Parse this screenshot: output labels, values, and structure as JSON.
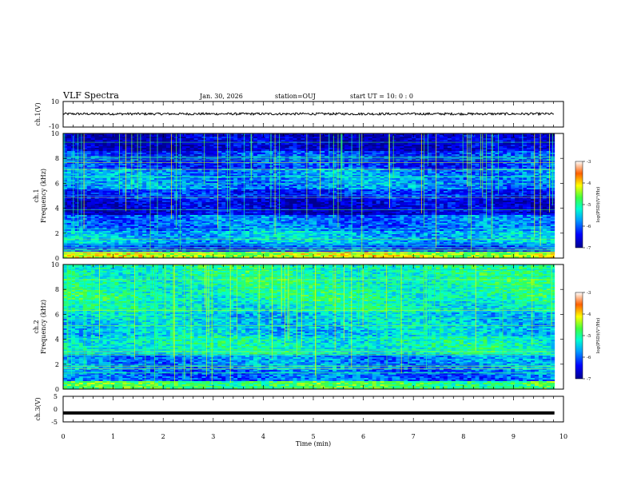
{
  "header": {
    "title": "VLF Spectra",
    "date": "Jan. 30, 2026",
    "station": "station=OUJ",
    "start": "start  UT =   10: 0  : 0"
  },
  "chart_data": [
    {
      "type": "line",
      "name": "ch1-voltage",
      "ylabel": "ch.1(V)",
      "ylim": [
        -10,
        10
      ],
      "ytick_labels": [
        "10",
        "-10"
      ],
      "description_level": 0.3,
      "noise_amplitude": 0.9
    },
    {
      "type": "heatmap",
      "name": "ch1-spectrogram",
      "ylabel_top": "ch.1",
      "ylabel": "Frequency  (kHz)",
      "ylim": [
        0,
        10
      ],
      "ytick_labels": [
        "0",
        "2",
        "4",
        "6",
        "8",
        "10"
      ],
      "colorbar": {
        "label": "log(PSD)(V²/Hz)",
        "min": -7,
        "max": -3,
        "tick_labels": [
          "-3",
          "-4",
          "-5",
          "-6",
          "-7"
        ]
      }
    },
    {
      "type": "heatmap",
      "name": "ch2-spectrogram",
      "ylabel_top": "ch.2",
      "ylabel": "Frequency  (kHz)",
      "ylim": [
        0,
        10
      ],
      "ytick_labels": [
        "0",
        "2",
        "4",
        "6",
        "8",
        "10"
      ],
      "colorbar": {
        "label": "log(PSD)(V²/Hz)",
        "min": -7,
        "max": -3,
        "tick_labels": [
          "-3",
          "-4",
          "-5",
          "-6",
          "-7"
        ]
      }
    },
    {
      "type": "line",
      "name": "ch3-voltage",
      "ylabel": "ch.3(V)",
      "ylim": [
        -5,
        5
      ],
      "ytick_labels": [
        "5",
        "0",
        "-5"
      ],
      "description_level": -1.5,
      "noise_amplitude": 0
    }
  ],
  "xaxis": {
    "label": "Time  (min)",
    "xlim": [
      0,
      10
    ],
    "tick_labels": [
      "0",
      "1",
      "2",
      "3",
      "4",
      "5",
      "6",
      "7",
      "8",
      "9",
      "10"
    ]
  }
}
